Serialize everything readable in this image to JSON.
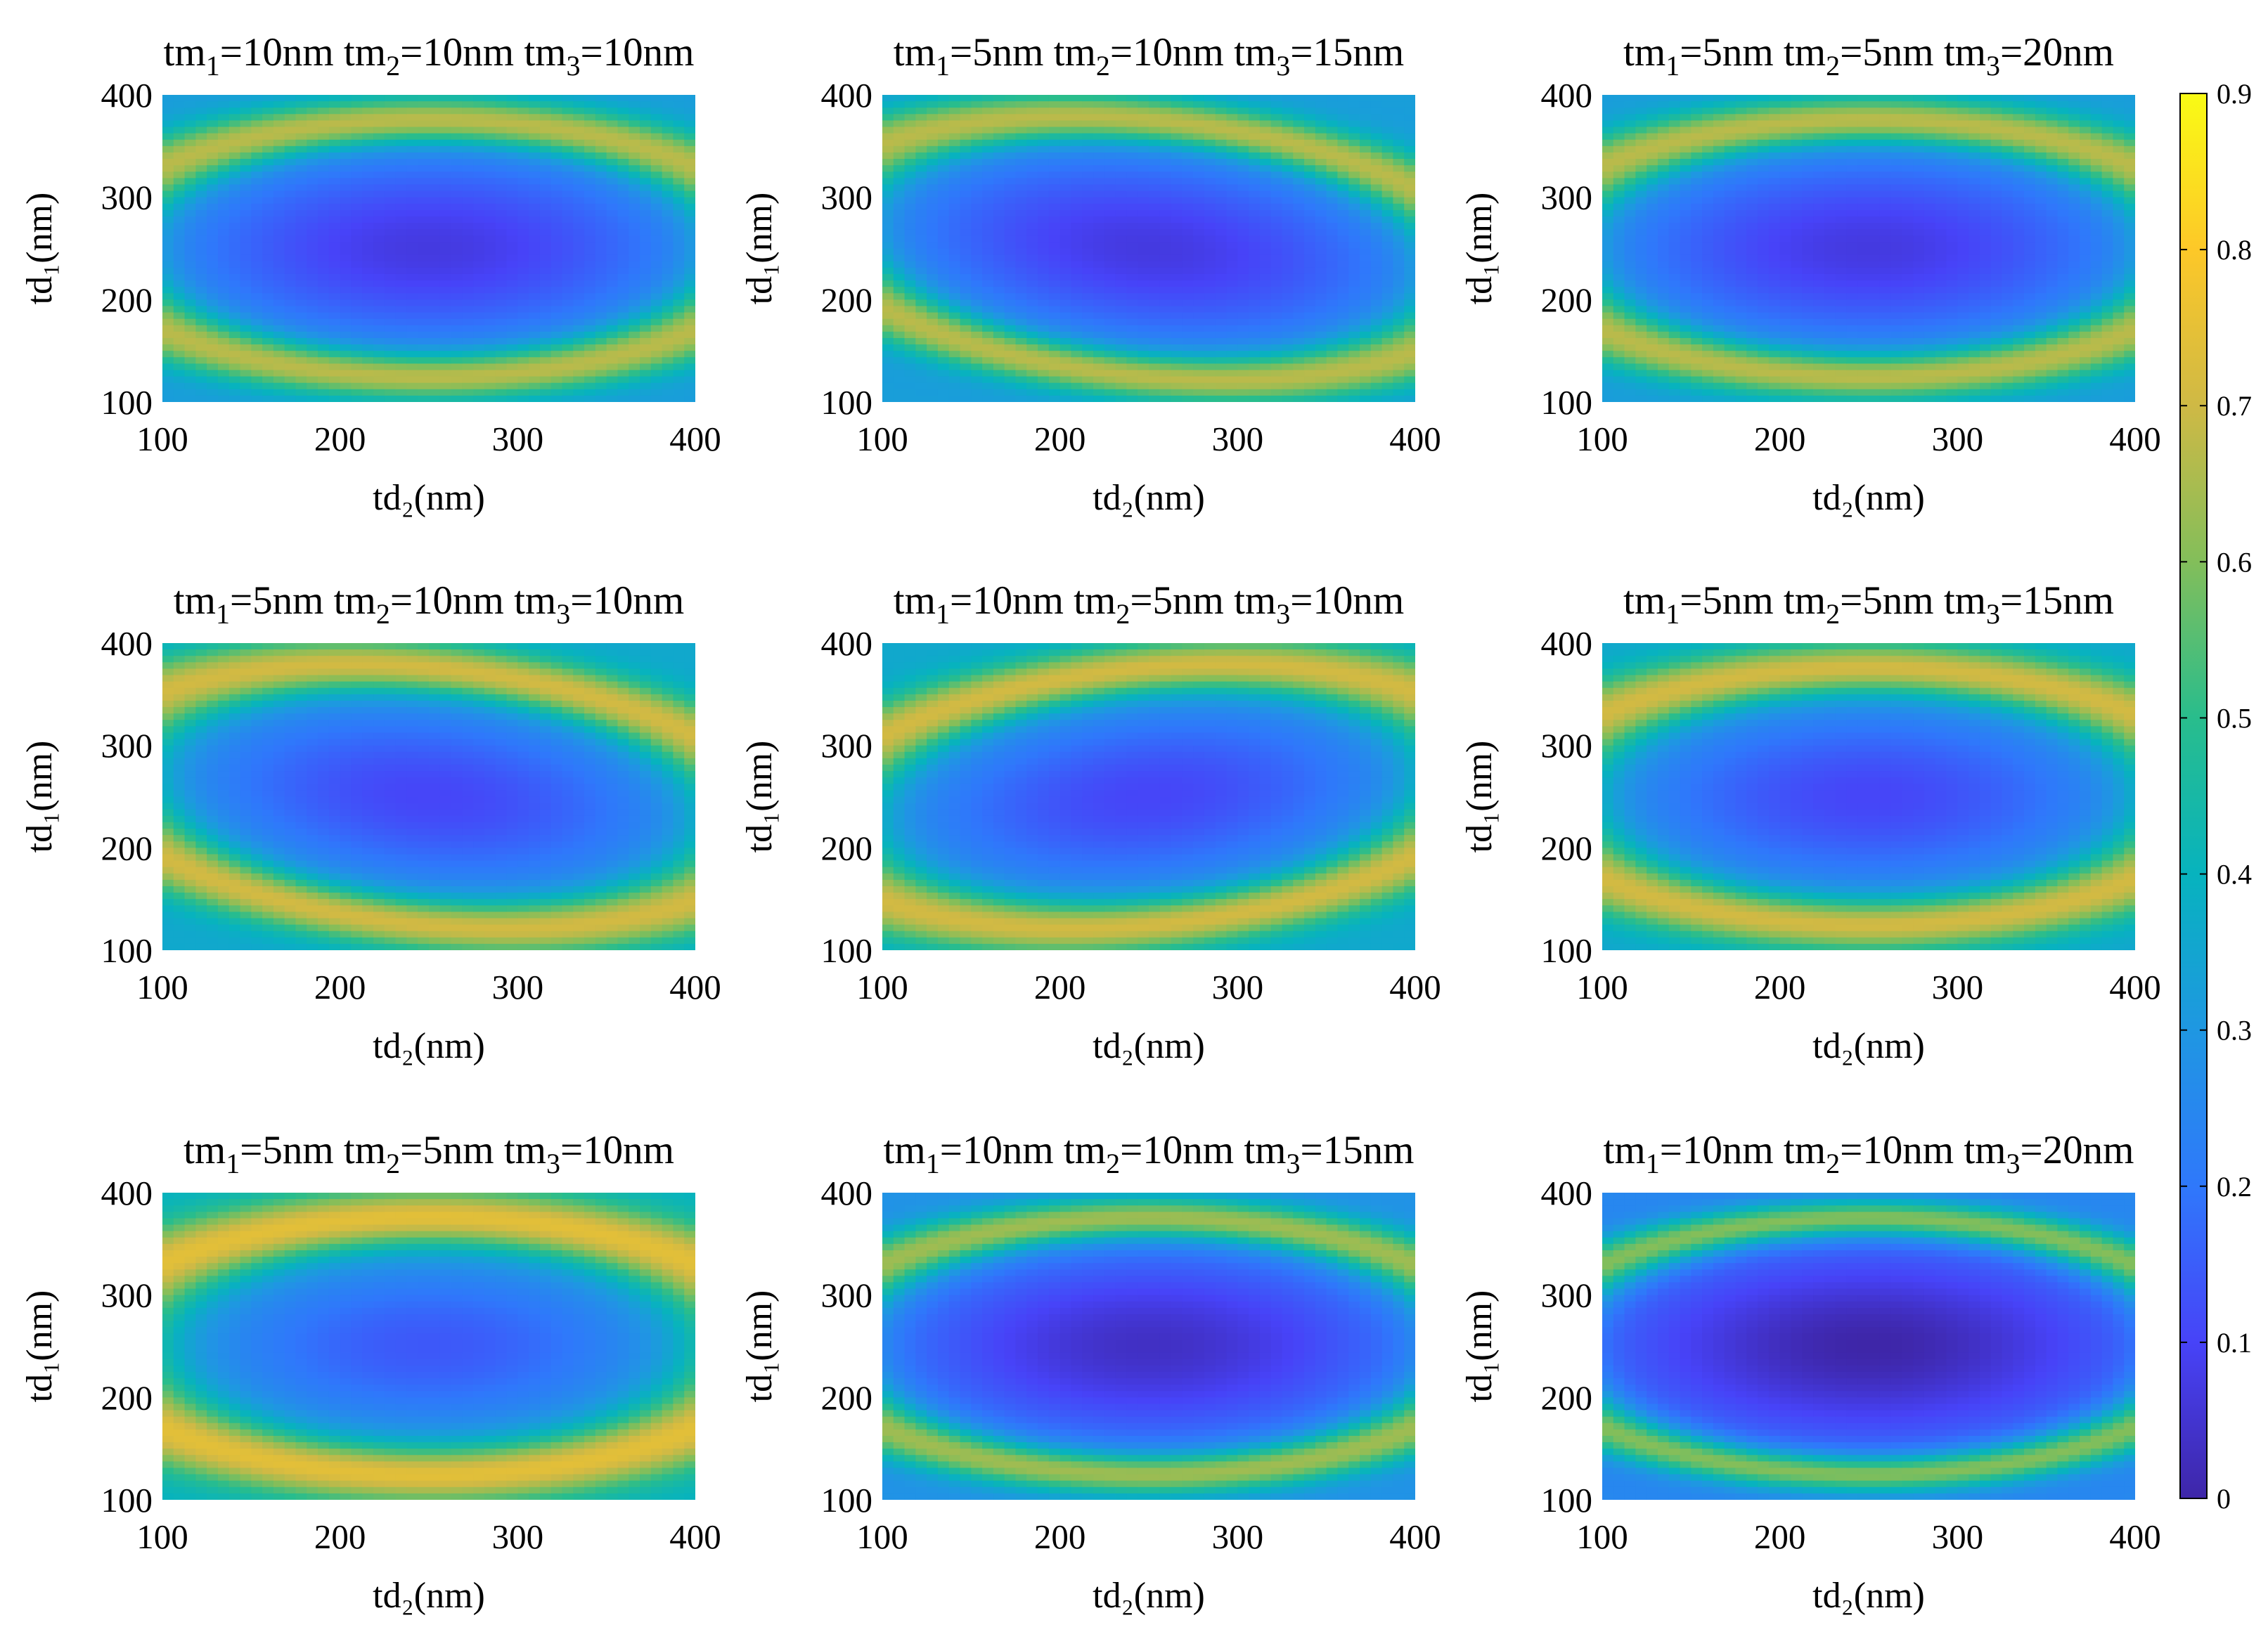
{
  "chart_data": {
    "type": "heatmap",
    "panels": [
      {
        "title": {
          "base1": "tm",
          "sub1": "1",
          "mid1": "=10nm tm",
          "sub2": "2",
          "mid2": "=10nm tm",
          "sub3": "3",
          "end": "=10nm"
        },
        "tm": [
          10,
          10,
          10
        ],
        "xlabel": "td₂(nm)",
        "ylabel": "td₁(nm)"
      },
      {
        "title": {
          "base1": "tm",
          "sub1": "1",
          "mid1": "=5nm tm",
          "sub2": "2",
          "mid2": "=10nm tm",
          "sub3": "3",
          "end": "=15nm"
        },
        "tm": [
          5,
          10,
          15
        ],
        "xlabel": "td₂(nm)",
        "ylabel": "td₁(nm)"
      },
      {
        "title": {
          "base1": "tm",
          "sub1": "1",
          "mid1": "=5nm tm",
          "sub2": "2",
          "mid2": "=5nm tm",
          "sub3": "3",
          "end": "=20nm"
        },
        "tm": [
          5,
          5,
          20
        ],
        "xlabel": "td₂(nm)",
        "ylabel": "td₁(nm)"
      },
      {
        "title": {
          "base1": "tm",
          "sub1": "1",
          "mid1": "=5nm tm",
          "sub2": "2",
          "mid2": "=10nm tm",
          "sub3": "3",
          "end": "=10nm"
        },
        "tm": [
          5,
          10,
          10
        ],
        "xlabel": "td₂(nm)",
        "ylabel": "td₁(nm)"
      },
      {
        "title": {
          "base1": "tm",
          "sub1": "1",
          "mid1": "=10nm tm",
          "sub2": "2",
          "mid2": "=5nm tm",
          "sub3": "3",
          "end": "=10nm"
        },
        "tm": [
          10,
          5,
          10
        ],
        "xlabel": "td₂(nm)",
        "ylabel": "td₁(nm)"
      },
      {
        "title": {
          "base1": "tm",
          "sub1": "1",
          "mid1": "=5nm tm",
          "sub2": "2",
          "mid2": "=5nm tm",
          "sub3": "3",
          "end": "=15nm"
        },
        "tm": [
          5,
          5,
          15
        ],
        "xlabel": "td₂(nm)",
        "ylabel": "td₁(nm)"
      },
      {
        "title": {
          "base1": "tm",
          "sub1": "1",
          "mid1": "=5nm tm",
          "sub2": "2",
          "mid2": "=5nm tm",
          "sub3": "3",
          "end": "=10nm"
        },
        "tm": [
          5,
          5,
          10
        ],
        "xlabel": "td₂(nm)",
        "ylabel": "td₁(nm)"
      },
      {
        "title": {
          "base1": "tm",
          "sub1": "1",
          "mid1": "=10nm tm",
          "sub2": "2",
          "mid2": "=10nm tm",
          "sub3": "3",
          "end": "=15nm"
        },
        "tm": [
          10,
          10,
          15
        ],
        "xlabel": "td₂(nm)",
        "ylabel": "td₁(nm)"
      },
      {
        "title": {
          "base1": "tm",
          "sub1": "1",
          "mid1": "=10nm tm",
          "sub2": "2",
          "mid2": "=10nm tm",
          "sub3": "3",
          "end": "=20nm"
        },
        "tm": [
          10,
          10,
          20
        ],
        "xlabel": "td₂(nm)",
        "ylabel": "td₁(nm)"
      }
    ],
    "x_ticks": [
      "100",
      "200",
      "300",
      "400"
    ],
    "y_ticks": [
      "100",
      "200",
      "300",
      "400"
    ],
    "xlim": [
      100,
      400
    ],
    "ylim": [
      100,
      400
    ],
    "colorbar": {
      "ticks": [
        "0",
        "0.1",
        "0.2",
        "0.3",
        "0.4",
        "0.5",
        "0.6",
        "0.7",
        "0.8",
        "0.9"
      ],
      "range": [
        0,
        0.9
      ],
      "colormap": "parula",
      "colors": [
        "#3e26a8",
        "#4743f8",
        "#2f78fb",
        "#1f97e2",
        "#07b3be",
        "#29bd8c",
        "#83be5a",
        "#cfb945",
        "#fdc828",
        "#f9fb15"
      ]
    }
  }
}
